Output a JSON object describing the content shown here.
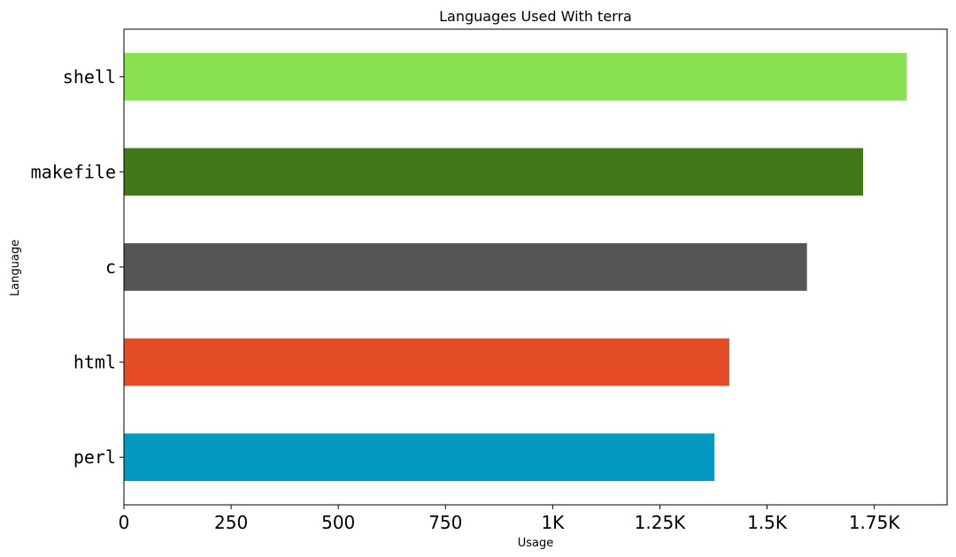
{
  "chart_data": {
    "type": "bar",
    "orientation": "horizontal",
    "title": "Languages Used With terra",
    "xlabel": "Usage",
    "ylabel": "Language",
    "categories": [
      "perl",
      "html",
      "c",
      "makefile",
      "shell"
    ],
    "values": [
      1377,
      1412,
      1593,
      1724,
      1826
    ],
    "colors": [
      "#0399C3",
      "#E34C26",
      "#555555",
      "#427819",
      "#89E051"
    ],
    "xlim": [
      0,
      1920
    ],
    "xticks": [
      0,
      250,
      500,
      750,
      1000,
      1250,
      1500,
      1750
    ],
    "xtick_labels": [
      "0",
      "250",
      "500",
      "750",
      "1K",
      "1.25K",
      "1.5K",
      "1.75K"
    ],
    "grid": false,
    "legend": "none"
  }
}
